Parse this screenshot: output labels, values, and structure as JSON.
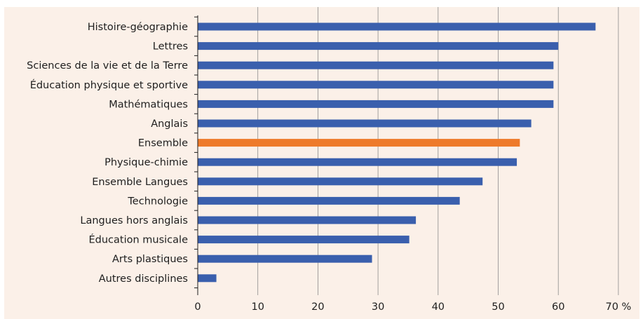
{
  "chart_data": {
    "type": "bar",
    "orientation": "horizontal",
    "categories": [
      "Histoire-géographie",
      "Lettres",
      "Sciences de la vie et de la Terre",
      "Éducation physique et sportive",
      "Mathématiques",
      "Anglais",
      "Ensemble",
      "Physique-chimie",
      "Ensemble Langues",
      "Technologie",
      "Langues hors anglais",
      "Éducation musicale",
      "Arts plastiques",
      "Autres disciplines"
    ],
    "values": [
      66.2,
      60.0,
      59.2,
      59.2,
      59.2,
      55.5,
      53.6,
      53.1,
      47.4,
      43.6,
      36.3,
      35.2,
      29.0,
      3.1
    ],
    "highlight_category": "Ensemble",
    "xlim": [
      0,
      70
    ],
    "xticks": [
      0,
      10,
      20,
      30,
      40,
      50,
      60,
      70
    ],
    "xtick_labels": [
      "0",
      "10",
      "20",
      "30",
      "40",
      "50",
      "60",
      "70 %"
    ],
    "grid": "vertical",
    "colors": {
      "bar": "#3a5fad",
      "highlight": "#ee7a2a",
      "background": "#fbf0e8",
      "grid": "#8c8c8c"
    }
  }
}
